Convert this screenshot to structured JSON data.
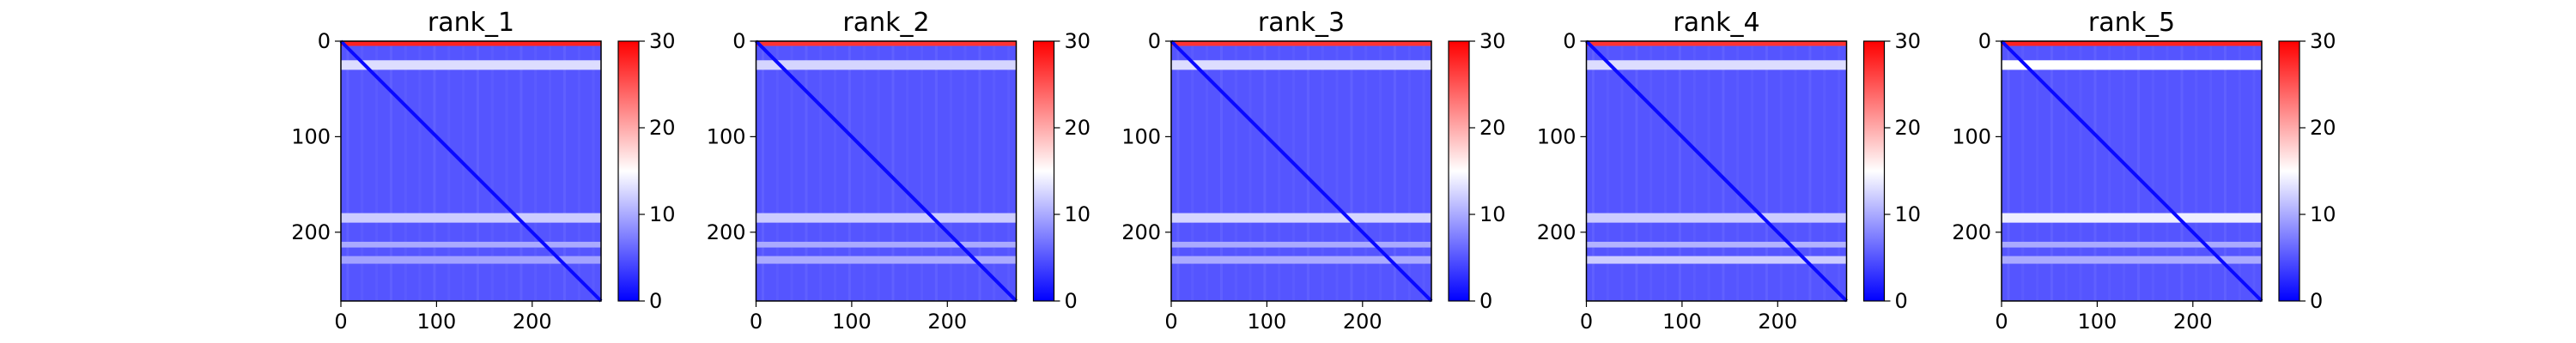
{
  "chart_data": [
    {
      "type": "heatmap",
      "title": "rank_1",
      "x_ticks": [
        0,
        100,
        200
      ],
      "y_ticks": [
        0,
        100,
        200
      ],
      "x_range": [
        0,
        272
      ],
      "y_range": [
        0,
        272
      ],
      "colorbar": {
        "ticks": [
          0,
          10,
          20,
          30
        ],
        "range": [
          0,
          30
        ],
        "colors": [
          "#0000ff",
          "#ffffff",
          "#ff0000"
        ]
      },
      "bands": [
        {
          "rows": [
            0,
            5
          ],
          "value": 28
        },
        {
          "rows": [
            20,
            30
          ],
          "value": 13
        },
        {
          "rows": [
            180,
            190
          ],
          "value": 12
        },
        {
          "rows": [
            210,
            216
          ],
          "value": 10
        },
        {
          "rows": [
            225,
            233
          ],
          "value": 9.5
        }
      ],
      "diagonal_value": 0.5,
      "background_value": 5
    },
    {
      "type": "heatmap",
      "title": "rank_2",
      "x_ticks": [
        0,
        100,
        200
      ],
      "y_ticks": [
        0,
        100,
        200
      ],
      "x_range": [
        0,
        272
      ],
      "y_range": [
        0,
        272
      ],
      "colorbar": {
        "ticks": [
          0,
          10,
          20,
          30
        ],
        "range": [
          0,
          30
        ],
        "colors": [
          "#0000ff",
          "#ffffff",
          "#ff0000"
        ]
      },
      "bands": [
        {
          "rows": [
            0,
            5
          ],
          "value": 27
        },
        {
          "rows": [
            20,
            30
          ],
          "value": 12.5
        },
        {
          "rows": [
            180,
            190
          ],
          "value": 12
        },
        {
          "rows": [
            210,
            216
          ],
          "value": 10
        },
        {
          "rows": [
            225,
            233
          ],
          "value": 10
        }
      ],
      "diagonal_value": 0.5,
      "background_value": 5
    },
    {
      "type": "heatmap",
      "title": "rank_3",
      "x_ticks": [
        0,
        100,
        200
      ],
      "y_ticks": [
        0,
        100,
        200
      ],
      "x_range": [
        0,
        272
      ],
      "y_range": [
        0,
        272
      ],
      "colorbar": {
        "ticks": [
          0,
          10,
          20,
          30
        ],
        "range": [
          0,
          30
        ],
        "colors": [
          "#0000ff",
          "#ffffff",
          "#ff0000"
        ]
      },
      "bands": [
        {
          "rows": [
            0,
            5
          ],
          "value": 27
        },
        {
          "rows": [
            20,
            30
          ],
          "value": 13
        },
        {
          "rows": [
            180,
            190
          ],
          "value": 12.5
        },
        {
          "rows": [
            210,
            216
          ],
          "value": 10
        },
        {
          "rows": [
            225,
            233
          ],
          "value": 10
        }
      ],
      "diagonal_value": 0.5,
      "background_value": 5
    },
    {
      "type": "heatmap",
      "title": "rank_4",
      "x_ticks": [
        0,
        100,
        200
      ],
      "y_ticks": [
        0,
        100,
        200
      ],
      "x_range": [
        0,
        272
      ],
      "y_range": [
        0,
        272
      ],
      "colorbar": {
        "ticks": [
          0,
          10,
          20,
          30
        ],
        "range": [
          0,
          30
        ],
        "colors": [
          "#0000ff",
          "#ffffff",
          "#ff0000"
        ]
      },
      "bands": [
        {
          "rows": [
            0,
            5
          ],
          "value": 27
        },
        {
          "rows": [
            20,
            30
          ],
          "value": 13
        },
        {
          "rows": [
            180,
            190
          ],
          "value": 12
        },
        {
          "rows": [
            210,
            216
          ],
          "value": 10.5
        },
        {
          "rows": [
            225,
            233
          ],
          "value": 12
        }
      ],
      "diagonal_value": 0.5,
      "background_value": 5
    },
    {
      "type": "heatmap",
      "title": "rank_5",
      "x_ticks": [
        0,
        100,
        200
      ],
      "y_ticks": [
        0,
        100,
        200
      ],
      "x_range": [
        0,
        272
      ],
      "y_range": [
        0,
        272
      ],
      "colorbar": {
        "ticks": [
          0,
          10,
          20,
          30
        ],
        "range": [
          0,
          30
        ],
        "colors": [
          "#0000ff",
          "#ffffff",
          "#ff0000"
        ]
      },
      "bands": [
        {
          "rows": [
            0,
            5
          ],
          "value": 28
        },
        {
          "rows": [
            20,
            30
          ],
          "value": 15
        },
        {
          "rows": [
            180,
            190
          ],
          "value": 14
        },
        {
          "rows": [
            210,
            216
          ],
          "value": 10
        },
        {
          "rows": [
            225,
            233
          ],
          "value": 10
        }
      ],
      "diagonal_value": 0.5,
      "background_value": 5
    }
  ]
}
